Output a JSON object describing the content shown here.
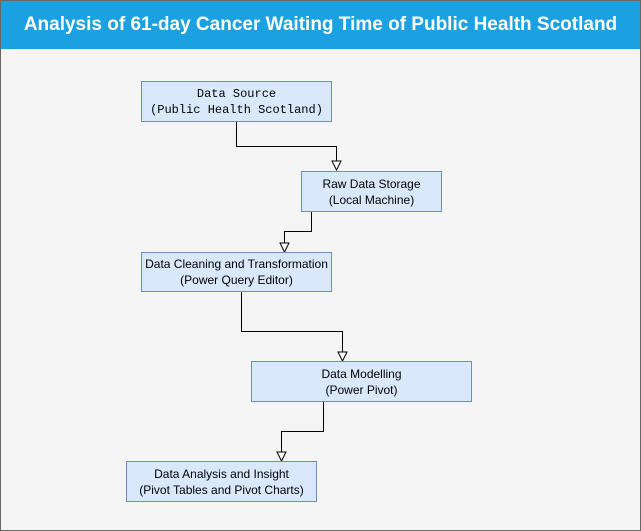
{
  "title": "Analysis of 61-day Cancer Waiting Time of Public Health Scotland",
  "colors": {
    "title_background": "#1ba1e2",
    "title_text": "#ffffff",
    "canvas_background": "#f5f5f5",
    "node_fill": "#dae8fc",
    "node_border": "#6c8ebf",
    "connector": "#000000"
  },
  "nodes": [
    {
      "line1": "Data Source",
      "line2": "(Public Health Scotland)"
    },
    {
      "line1": "Raw Data Storage",
      "line2": "(Local Machine)"
    },
    {
      "line1": "Data Cleaning and Transformation",
      "line2": "(Power Query Editor)"
    },
    {
      "line1": "Data Modelling",
      "line2": "(Power Pivot)"
    },
    {
      "line1": "Data Analysis and Insight",
      "line2": "(Pivot Tables and Pivot Charts)"
    }
  ],
  "edges": [
    {
      "from": 0,
      "to": 1,
      "arrow": "open-triangle"
    },
    {
      "from": 1,
      "to": 2,
      "arrow": "open-triangle"
    },
    {
      "from": 2,
      "to": 3,
      "arrow": "open-triangle"
    },
    {
      "from": 3,
      "to": 4,
      "arrow": "open-triangle"
    }
  ]
}
